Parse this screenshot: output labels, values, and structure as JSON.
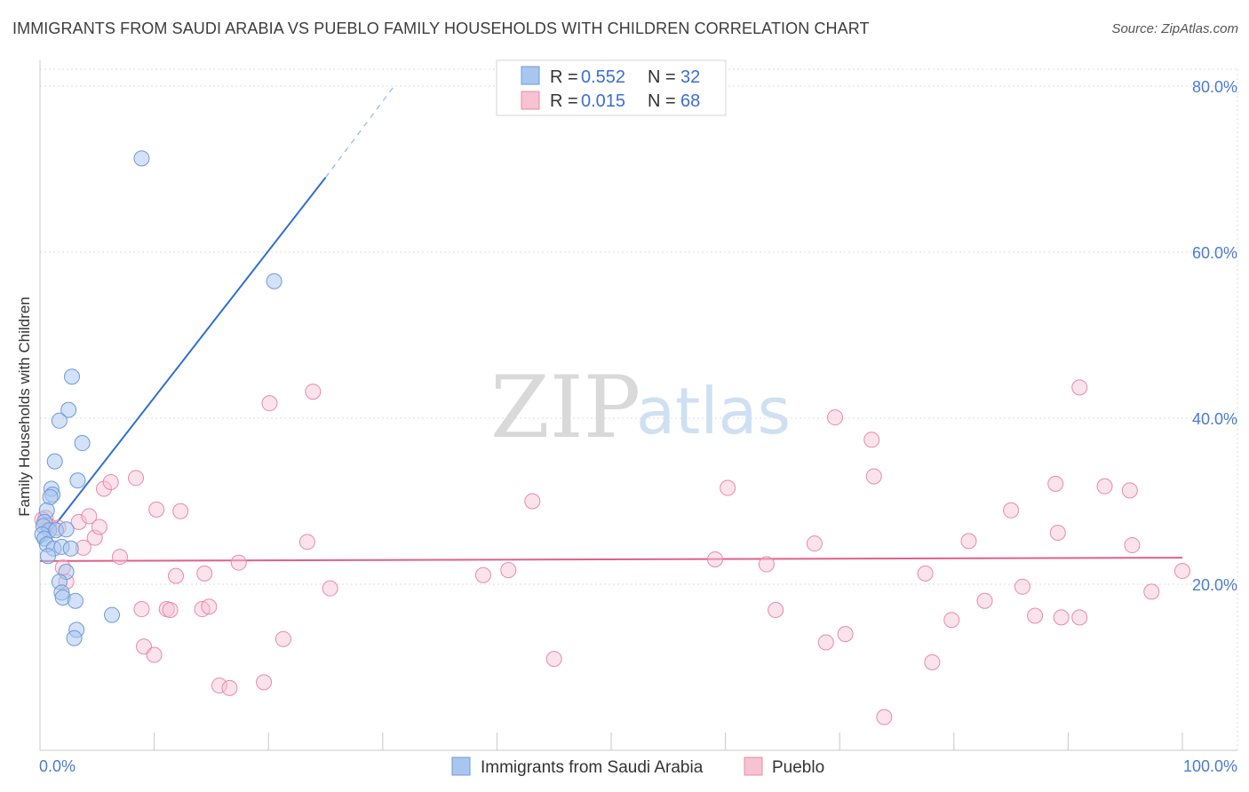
{
  "header": {
    "title": "IMMIGRANTS FROM SAUDI ARABIA VS PUEBLO FAMILY HOUSEHOLDS WITH CHILDREN CORRELATION CHART",
    "source": "Source: ZipAtlas.com"
  },
  "watermark": {
    "zip": "ZIP",
    "atlas": "atlas"
  },
  "colors": {
    "blue_fill": "#a9c6ef",
    "blue_stroke": "#6d9ad8",
    "blue_line": "#2f6fcf",
    "pink_fill": "#f7c2d2",
    "pink_stroke": "#e88aa8",
    "pink_line": "#e0608a",
    "grid": "#dcdcdc",
    "axis_label": "#4a7bd0"
  },
  "legend": {
    "r_label": "R =",
    "n_label": "N =",
    "rows": [
      {
        "r": "0.552",
        "n": "32"
      },
      {
        "r": "0.015",
        "n": "68"
      }
    ]
  },
  "chart_data": {
    "type": "scatter",
    "title": "IMMIGRANTS FROM SAUDI ARABIA VS PUEBLO FAMILY HOUSEHOLDS WITH CHILDREN CORRELATION CHART",
    "xlabel": "",
    "ylabel": "Family Households with Children",
    "xlim": [
      0,
      100
    ],
    "ylim": [
      0,
      82
    ],
    "x_tick_labels": [
      "0.0%",
      "100.0%"
    ],
    "y_ticks": [
      20,
      40,
      60,
      80
    ],
    "y_tick_labels": [
      "20.0%",
      "40.0%",
      "60.0%",
      "80.0%"
    ],
    "grid": true,
    "legend_position": "top-center",
    "series": [
      {
        "name": "Immigrants from Saudi Arabia",
        "r": 0.552,
        "n": 32,
        "trend": {
          "x0": 0,
          "y0": 24.8,
          "x1": 25,
          "y1": 69,
          "dash_to_x": 31,
          "dash_to_y": 80
        },
        "points": [
          [
            8.9,
            71.3
          ],
          [
            20.5,
            56.5
          ],
          [
            2.8,
            45.0
          ],
          [
            2.5,
            41.0
          ],
          [
            1.7,
            39.7
          ],
          [
            3.7,
            37.0
          ],
          [
            1.3,
            34.8
          ],
          [
            3.3,
            32.5
          ],
          [
            1.0,
            31.5
          ],
          [
            1.1,
            30.8
          ],
          [
            0.9,
            30.5
          ],
          [
            0.6,
            28.9
          ],
          [
            0.4,
            27.5
          ],
          [
            0.3,
            27.0
          ],
          [
            0.8,
            26.5
          ],
          [
            1.4,
            26.5
          ],
          [
            2.3,
            26.6
          ],
          [
            0.2,
            26.0
          ],
          [
            0.4,
            25.5
          ],
          [
            0.6,
            24.8
          ],
          [
            1.2,
            24.3
          ],
          [
            1.9,
            24.5
          ],
          [
            2.7,
            24.3
          ],
          [
            0.7,
            23.4
          ],
          [
            2.3,
            21.5
          ],
          [
            1.7,
            20.3
          ],
          [
            1.9,
            19.0
          ],
          [
            2.0,
            18.4
          ],
          [
            3.1,
            18.0
          ],
          [
            6.3,
            16.3
          ],
          [
            3.2,
            14.5
          ],
          [
            3.0,
            13.5
          ]
        ]
      },
      {
        "name": "Pueblo",
        "r": 0.015,
        "n": 68,
        "trend": {
          "x0": 0,
          "y0": 22.8,
          "x1": 100,
          "y1": 23.2
        },
        "points": [
          [
            0.5,
            28.0
          ],
          [
            0.8,
            27.0
          ],
          [
            1.6,
            26.8
          ],
          [
            2.0,
            22.0
          ],
          [
            2.3,
            20.3
          ],
          [
            3.4,
            27.5
          ],
          [
            3.8,
            24.4
          ],
          [
            4.3,
            28.2
          ],
          [
            4.8,
            25.6
          ],
          [
            5.2,
            26.9
          ],
          [
            5.6,
            31.5
          ],
          [
            6.2,
            32.3
          ],
          [
            7.0,
            23.3
          ],
          [
            8.4,
            32.8
          ],
          [
            8.9,
            17.0
          ],
          [
            9.1,
            12.5
          ],
          [
            10.0,
            11.5
          ],
          [
            10.2,
            29.0
          ],
          [
            11.1,
            17.0
          ],
          [
            11.4,
            16.9
          ],
          [
            11.9,
            21.0
          ],
          [
            12.3,
            28.8
          ],
          [
            14.2,
            17.0
          ],
          [
            14.4,
            21.3
          ],
          [
            14.8,
            17.3
          ],
          [
            15.7,
            7.8
          ],
          [
            16.6,
            7.5
          ],
          [
            17.4,
            22.6
          ],
          [
            19.6,
            8.2
          ],
          [
            20.1,
            41.8
          ],
          [
            21.3,
            13.4
          ],
          [
            23.4,
            25.1
          ],
          [
            23.9,
            43.2
          ],
          [
            25.4,
            19.5
          ],
          [
            38.8,
            21.1
          ],
          [
            41.0,
            21.7
          ],
          [
            43.1,
            30.0
          ],
          [
            45.0,
            11.0
          ],
          [
            59.1,
            23.0
          ],
          [
            60.2,
            31.6
          ],
          [
            63.6,
            22.4
          ],
          [
            64.4,
            16.9
          ],
          [
            67.8,
            24.9
          ],
          [
            68.8,
            13.0
          ],
          [
            69.6,
            40.1
          ],
          [
            70.5,
            14.0
          ],
          [
            72.8,
            37.4
          ],
          [
            73.0,
            33.0
          ],
          [
            73.9,
            4.0
          ],
          [
            77.5,
            21.3
          ],
          [
            78.1,
            10.6
          ],
          [
            79.8,
            15.7
          ],
          [
            81.3,
            25.2
          ],
          [
            82.7,
            18.0
          ],
          [
            85.0,
            28.9
          ],
          [
            86.0,
            19.7
          ],
          [
            87.1,
            16.2
          ],
          [
            88.9,
            32.1
          ],
          [
            89.1,
            26.2
          ],
          [
            89.4,
            16.0
          ],
          [
            91.0,
            43.7
          ],
          [
            91.0,
            16.0
          ],
          [
            93.2,
            31.8
          ],
          [
            95.4,
            31.3
          ],
          [
            95.6,
            24.7
          ],
          [
            97.3,
            19.1
          ],
          [
            100.0,
            21.6
          ],
          [
            0.2,
            27.8
          ]
        ]
      }
    ]
  }
}
